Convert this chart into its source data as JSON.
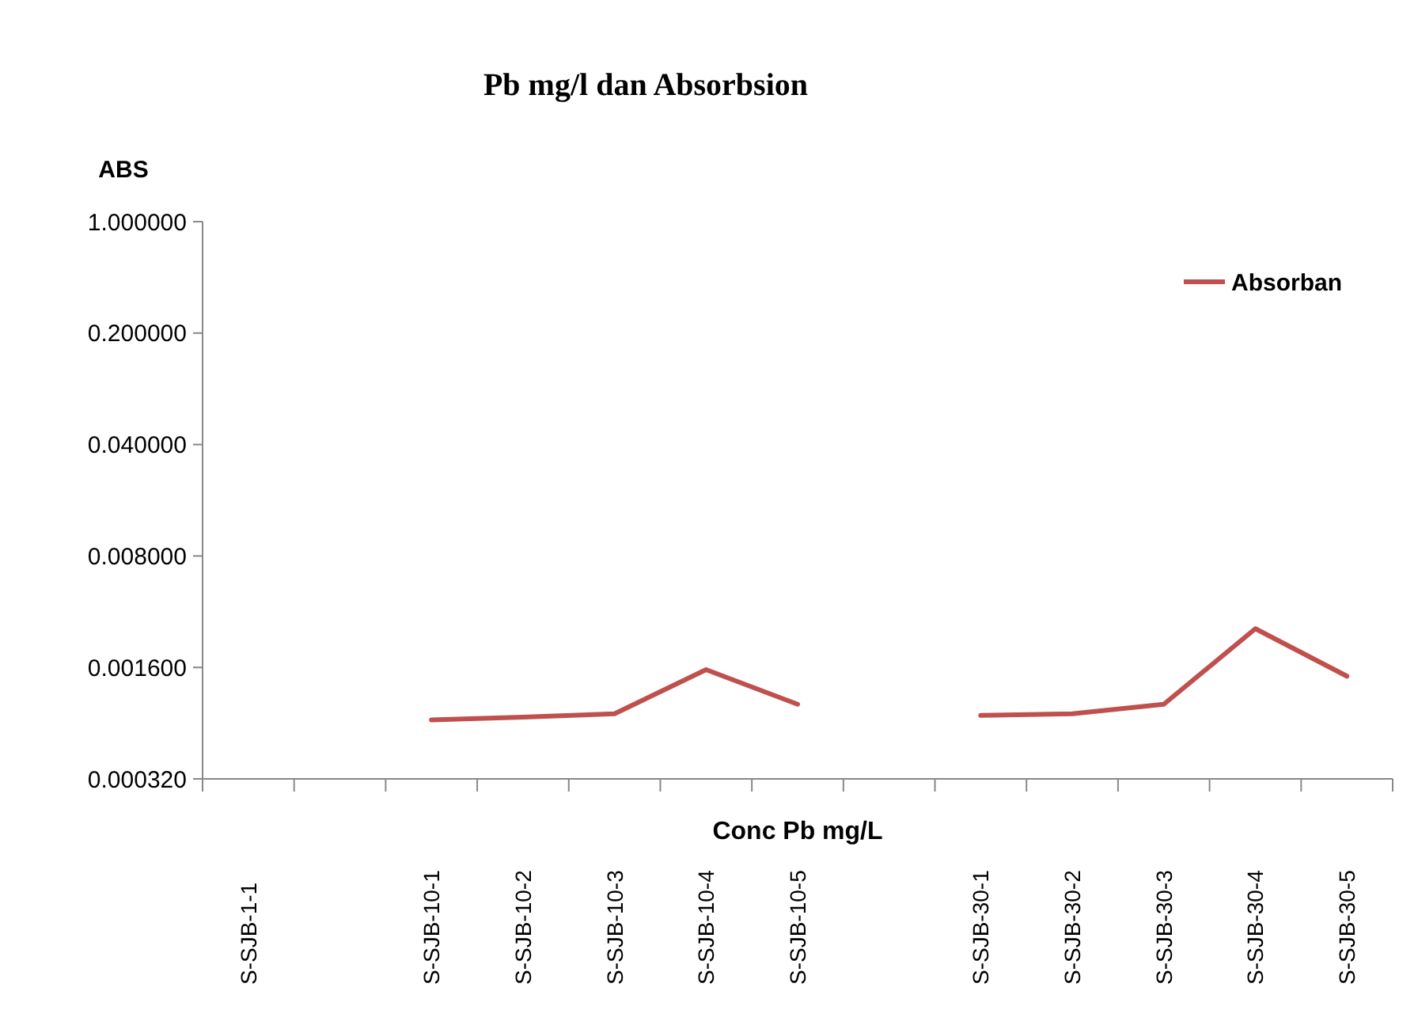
{
  "chart_data": {
    "type": "line",
    "title": "Pb mg/l dan Absorbsion",
    "xlabel": "Conc Pb mg/L",
    "ylabel": "ABS",
    "log": "y",
    "legend": "top right",
    "marker": "none",
    "line_style": "solid",
    "grid": false,
    "categories": [
      "S-SJB-1-1",
      null,
      "S-SJB-10-1",
      "S-SJB-10-2",
      "S-SJB-10-3",
      "S-SJB-10-4",
      "S-SJB-10-5",
      null,
      "S-SJB-30-1",
      "S-SJB-30-2",
      "S-SJB-30-3",
      "S-SJB-30-4",
      "S-SJB-30-5"
    ],
    "ylim": [
      0.00032,
      1
    ],
    "yticks": [
      {
        "value": 0.00032,
        "label": "0.000320"
      },
      {
        "value": 0.0016,
        "label": "0.001600"
      },
      {
        "value": 0.008,
        "label": "0.008000"
      },
      {
        "value": 0.04,
        "label": "0.040000"
      },
      {
        "value": 0.2,
        "label": "0.200000"
      },
      {
        "value": 1,
        "label": "1.000000"
      }
    ],
    "series": [
      {
        "name": "Absorban",
        "color": "#c0504d",
        "values": [
          null,
          null,
          0.00075,
          0.00078,
          0.00082,
          0.00155,
          0.00094,
          null,
          0.0008,
          0.00082,
          0.00094,
          0.0028,
          0.00141
        ]
      }
    ]
  }
}
